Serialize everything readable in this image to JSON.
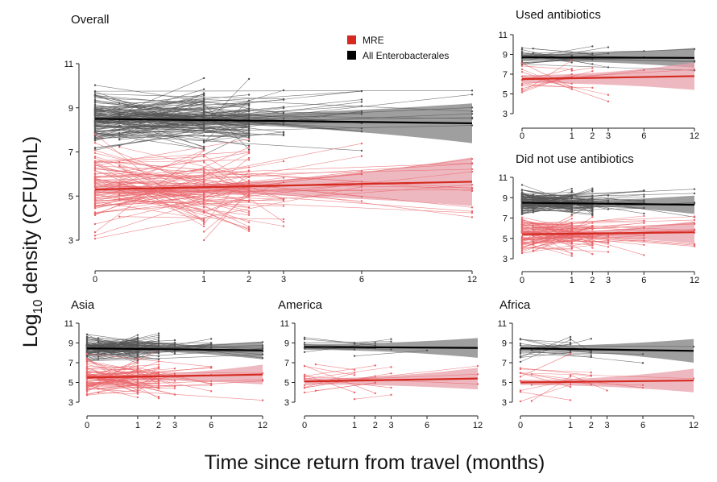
{
  "figure": {
    "ylabel_prefix": "Log",
    "ylabel_sub": "10",
    "ylabel_rest": " density (CFU/mL)",
    "xlabel": "Time since return from travel (months)"
  },
  "chart_data": {
    "type": "line",
    "x_ticks": [
      0,
      1,
      2,
      3,
      6,
      12
    ],
    "y_ticks": [
      3,
      5,
      7,
      9,
      11
    ],
    "x_scale": "square-root",
    "legend": {
      "placement": "top-right of Overall panel",
      "entries": [
        {
          "label": "MRE",
          "color": "#d42a20"
        },
        {
          "label": "All Enterobacterales",
          "color": "#000000"
        }
      ]
    },
    "colors": {
      "mre_line": "#d42a20",
      "mre_band": "#e8a0ab",
      "mre_traj": "#e8666b",
      "all_line": "#000000",
      "all_band": "#8e8e8e",
      "all_traj": "#555555"
    },
    "panels": [
      {
        "id": "overall",
        "title": "Overall",
        "xlim": [
          0,
          12
        ],
        "ylim": [
          3,
          11
        ],
        "series": [
          {
            "name": "All Enterobacterales",
            "fit_x": [
              0,
              12
            ],
            "fit_y": [
              8.5,
              8.3
            ],
            "ci_half_width": [
              0.12,
              0.9
            ]
          },
          {
            "name": "MRE",
            "fit_x": [
              0,
              12
            ],
            "fit_y": [
              5.3,
              5.65
            ],
            "ci_half_width": [
              0.12,
              1.1
            ]
          }
        ]
      },
      {
        "id": "used-antibiotics",
        "title": "Used antibiotics",
        "xlim": [
          0,
          12
        ],
        "ylim": [
          3,
          11
        ],
        "series": [
          {
            "name": "All Enterobacterales",
            "fit_x": [
              0,
              12
            ],
            "fit_y": [
              8.7,
              8.65
            ],
            "ci_half_width": [
              0.35,
              1.0
            ]
          },
          {
            "name": "MRE",
            "fit_x": [
              0,
              12
            ],
            "fit_y": [
              6.5,
              6.8
            ],
            "ci_half_width": [
              0.4,
              1.4
            ]
          }
        ]
      },
      {
        "id": "did-not-use-antibiotics",
        "title": "Did not use antibiotics",
        "xlim": [
          0,
          12
        ],
        "ylim": [
          3,
          11
        ],
        "series": [
          {
            "name": "All Enterobacterales",
            "fit_x": [
              0,
              12
            ],
            "fit_y": [
              8.5,
              8.3
            ],
            "ci_half_width": [
              0.15,
              0.9
            ]
          },
          {
            "name": "MRE",
            "fit_x": [
              0,
              12
            ],
            "fit_y": [
              5.4,
              5.6
            ],
            "ci_half_width": [
              0.15,
              1.1
            ]
          }
        ]
      },
      {
        "id": "asia",
        "title": "Asia",
        "xlim": [
          0,
          12
        ],
        "ylim": [
          3,
          11
        ],
        "series": [
          {
            "name": "All Enterobacterales",
            "fit_x": [
              0,
              12
            ],
            "fit_y": [
              8.45,
              8.25
            ],
            "ci_half_width": [
              0.15,
              0.9
            ]
          },
          {
            "name": "MRE",
            "fit_x": [
              0,
              12
            ],
            "fit_y": [
              5.5,
              5.8
            ],
            "ci_half_width": [
              0.15,
              1.0
            ]
          }
        ]
      },
      {
        "id": "america",
        "title": "America",
        "xlim": [
          0,
          12
        ],
        "ylim": [
          3,
          11
        ],
        "series": [
          {
            "name": "All Enterobacterales",
            "fit_x": [
              0,
              12
            ],
            "fit_y": [
              8.6,
              8.5
            ],
            "ci_half_width": [
              0.3,
              1.0
            ]
          },
          {
            "name": "MRE",
            "fit_x": [
              0,
              12
            ],
            "fit_y": [
              5.1,
              5.4
            ],
            "ci_half_width": [
              0.3,
              1.1
            ]
          }
        ]
      },
      {
        "id": "africa",
        "title": "Africa",
        "xlim": [
          0,
          12
        ],
        "ylim": [
          3,
          11
        ],
        "series": [
          {
            "name": "All Enterobacterales",
            "fit_x": [
              0,
              12
            ],
            "fit_y": [
              8.45,
              8.2
            ],
            "ci_half_width": [
              0.25,
              1.2
            ]
          },
          {
            "name": "MRE",
            "fit_x": [
              0,
              12
            ],
            "fit_y": [
              5.0,
              5.2
            ],
            "ci_half_width": [
              0.25,
              1.2
            ]
          }
        ]
      }
    ]
  }
}
